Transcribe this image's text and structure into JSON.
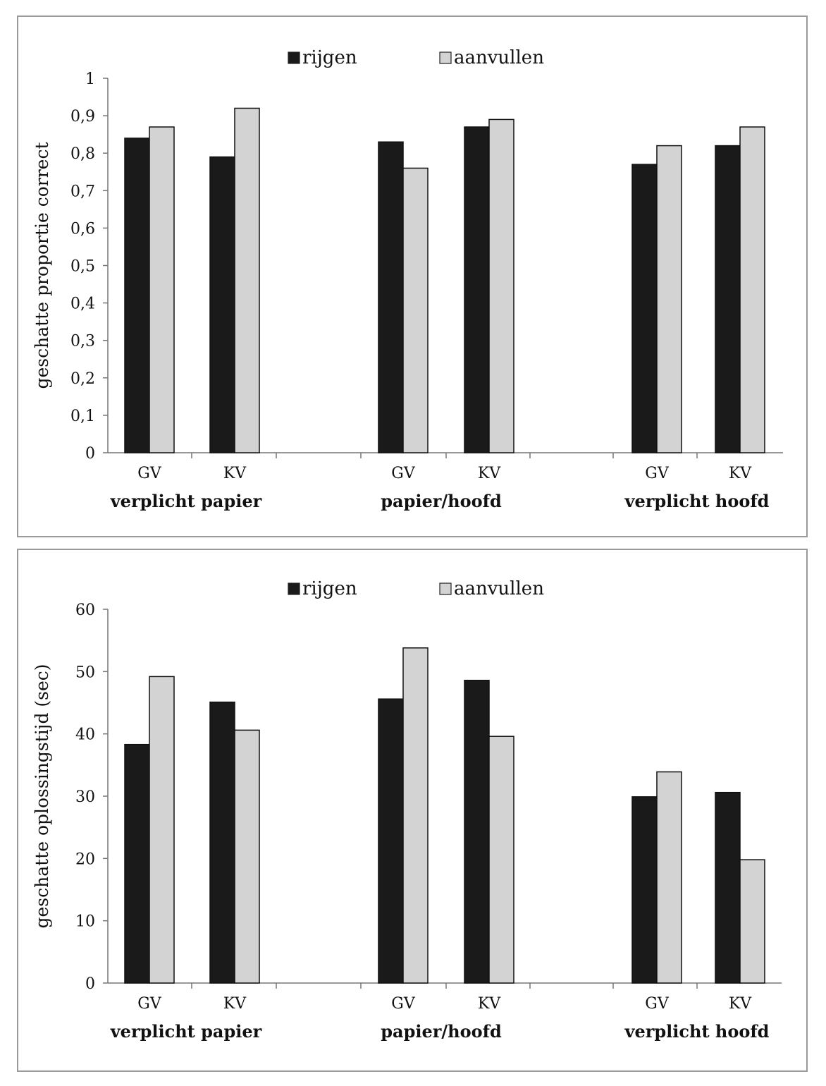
{
  "chart_data": [
    {
      "type": "bar",
      "ylabel": "geschatte proportie correct",
      "ylim": [
        0,
        1
      ],
      "yticks": [
        0,
        0.1,
        0.2,
        0.3,
        0.4,
        0.5,
        0.6,
        0.7,
        0.8,
        0.9,
        1
      ],
      "yticklabels": [
        "0",
        "0,1",
        "0,2",
        "0,3",
        "0,4",
        "0,5",
        "0,6",
        "0,7",
        "0,8",
        "0,9",
        "1"
      ],
      "groups": [
        "verplicht papier",
        "papier/hoofd",
        "verplicht hoofd"
      ],
      "categories": [
        "GV",
        "KV",
        "GV",
        "KV",
        "GV",
        "KV"
      ],
      "legend_position": "top",
      "series": [
        {
          "name": "rijgen",
          "color": "#1a1a1a",
          "values": [
            0.84,
            0.79,
            0.83,
            0.87,
            0.77,
            0.82
          ]
        },
        {
          "name": "aanvullen",
          "color": "#d3d3d3",
          "values": [
            0.87,
            0.92,
            0.76,
            0.89,
            0.82,
            0.87
          ]
        }
      ]
    },
    {
      "type": "bar",
      "ylabel": "geschatte oplossingstijd (sec)",
      "ylim": [
        0,
        60
      ],
      "yticks": [
        0,
        10,
        20,
        30,
        40,
        50,
        60
      ],
      "yticklabels": [
        "0",
        "10",
        "20",
        "30",
        "40",
        "50",
        "60"
      ],
      "groups": [
        "verplicht papier",
        "papier/hoofd",
        "verplicht hoofd"
      ],
      "categories": [
        "GV",
        "KV",
        "GV",
        "KV",
        "GV",
        "KV"
      ],
      "legend_position": "top",
      "series": [
        {
          "name": "rijgen",
          "color": "#1a1a1a",
          "values": [
            38.3,
            45.1,
            45.6,
            48.6,
            29.9,
            30.6
          ]
        },
        {
          "name": "aanvullen",
          "color": "#d3d3d3",
          "values": [
            49.2,
            40.6,
            53.8,
            39.6,
            33.9,
            19.8
          ]
        }
      ]
    }
  ]
}
